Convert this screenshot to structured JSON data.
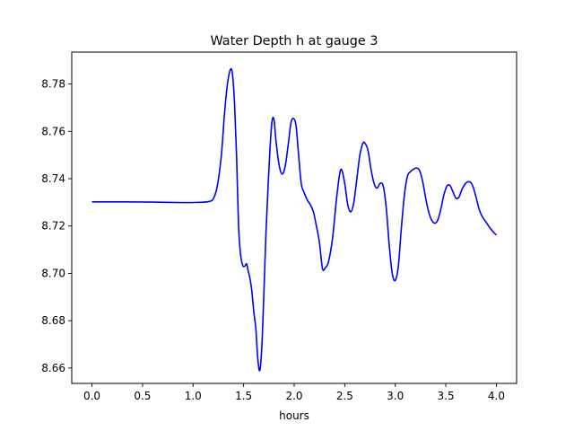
{
  "chart_data": {
    "type": "line",
    "title": "Water Depth h at gauge 3",
    "xlabel": "hours",
    "ylabel": "",
    "xlim": [
      -0.2,
      4.2
    ],
    "ylim": [
      8.6535,
      8.7935
    ],
    "xticks": [
      0.0,
      0.5,
      1.0,
      1.5,
      2.0,
      2.5,
      3.0,
      3.5,
      4.0
    ],
    "xtick_labels": [
      "0.0",
      "0.5",
      "1.0",
      "1.5",
      "2.0",
      "2.5",
      "3.0",
      "3.5",
      "4.0"
    ],
    "yticks": [
      8.66,
      8.68,
      8.7,
      8.72,
      8.74,
      8.76,
      8.78
    ],
    "ytick_labels": [
      "8.66",
      "8.68",
      "8.70",
      "8.72",
      "8.74",
      "8.76",
      "8.78"
    ],
    "grid": false,
    "legend": "none",
    "series": [
      {
        "color": "#0000ff",
        "x": [
          0.0,
          0.3,
          0.6,
          0.9,
          1.05,
          1.15,
          1.2,
          1.24,
          1.28,
          1.31,
          1.34,
          1.37,
          1.39,
          1.41,
          1.43,
          1.45,
          1.47,
          1.49,
          1.51,
          1.53,
          1.545,
          1.56,
          1.58,
          1.6,
          1.62,
          1.64,
          1.66,
          1.68,
          1.7,
          1.72,
          1.74,
          1.76,
          1.78,
          1.8,
          1.82,
          1.85,
          1.88,
          1.91,
          1.94,
          1.97,
          2.0,
          2.02,
          2.04,
          2.07,
          2.1,
          2.13,
          2.16,
          2.19,
          2.22,
          2.25,
          2.28,
          2.31,
          2.34,
          2.38,
          2.42,
          2.45,
          2.47,
          2.5,
          2.53,
          2.56,
          2.59,
          2.62,
          2.65,
          2.68,
          2.7,
          2.73,
          2.76,
          2.79,
          2.82,
          2.85,
          2.88,
          2.91,
          2.94,
          2.97,
          3.0,
          3.03,
          3.06,
          3.09,
          3.12,
          3.15,
          3.18,
          3.21,
          3.24,
          3.27,
          3.3,
          3.33,
          3.36,
          3.39,
          3.42,
          3.45,
          3.48,
          3.51,
          3.54,
          3.57,
          3.6,
          3.63,
          3.66,
          3.7,
          3.74,
          3.77,
          3.8,
          3.83,
          3.86,
          3.9,
          3.94,
          3.98,
          4.0
        ],
        "y": [
          8.7302,
          8.7302,
          8.7301,
          8.7299,
          8.73,
          8.7303,
          8.7315,
          8.737,
          8.75,
          8.767,
          8.78,
          8.7862,
          8.784,
          8.772,
          8.75,
          8.72,
          8.708,
          8.7035,
          8.703,
          8.704,
          8.701,
          8.6985,
          8.693,
          8.684,
          8.677,
          8.664,
          8.659,
          8.669,
          8.691,
          8.716,
          8.735,
          8.752,
          8.764,
          8.765,
          8.756,
          8.746,
          8.742,
          8.745,
          8.754,
          8.764,
          8.7652,
          8.762,
          8.752,
          8.738,
          8.734,
          8.731,
          8.729,
          8.726,
          8.72,
          8.713,
          8.702,
          8.7025,
          8.705,
          8.715,
          8.732,
          8.742,
          8.7437,
          8.738,
          8.729,
          8.726,
          8.73,
          8.74,
          8.75,
          8.755,
          8.755,
          8.752,
          8.744,
          8.738,
          8.736,
          8.738,
          8.737,
          8.728,
          8.712,
          8.7,
          8.697,
          8.703,
          8.719,
          8.733,
          8.741,
          8.743,
          8.744,
          8.7445,
          8.7435,
          8.739,
          8.732,
          8.726,
          8.7225,
          8.7212,
          8.7225,
          8.727,
          8.733,
          8.7368,
          8.7372,
          8.7345,
          8.7318,
          8.7322,
          8.7355,
          8.7382,
          8.7386,
          8.7365,
          8.732,
          8.727,
          8.724,
          8.7215,
          8.719,
          8.717,
          8.7162
        ]
      }
    ]
  }
}
